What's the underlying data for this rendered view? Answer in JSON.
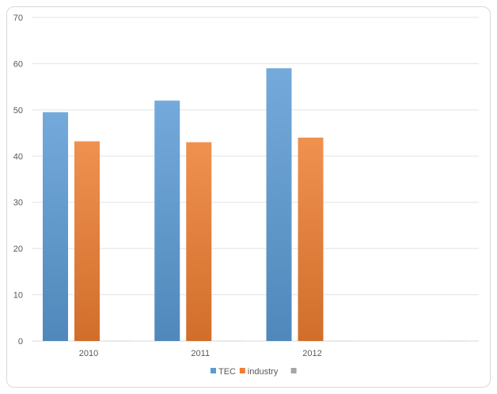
{
  "chart_data": {
    "type": "bar",
    "title": "",
    "xlabel": "",
    "ylabel": "",
    "categories": [
      "2010",
      "2011",
      "2012",
      "",
      ""
    ],
    "series": [
      {
        "name": "TEC",
        "color": "#5B9BD5",
        "values": [
          49.5,
          52,
          59,
          null,
          null
        ]
      },
      {
        "name": "industry",
        "color": "#ED7D31",
        "values": [
          43.2,
          43,
          44,
          null,
          null
        ]
      },
      {
        "name": "",
        "color": "#A5A5A5",
        "values": [
          0,
          0,
          0,
          0,
          0
        ]
      }
    ],
    "ylim": [
      0,
      70
    ],
    "yticks": [
      0,
      10,
      20,
      30,
      40,
      50,
      60,
      70
    ],
    "grid": true,
    "legend_position": "bottom"
  }
}
